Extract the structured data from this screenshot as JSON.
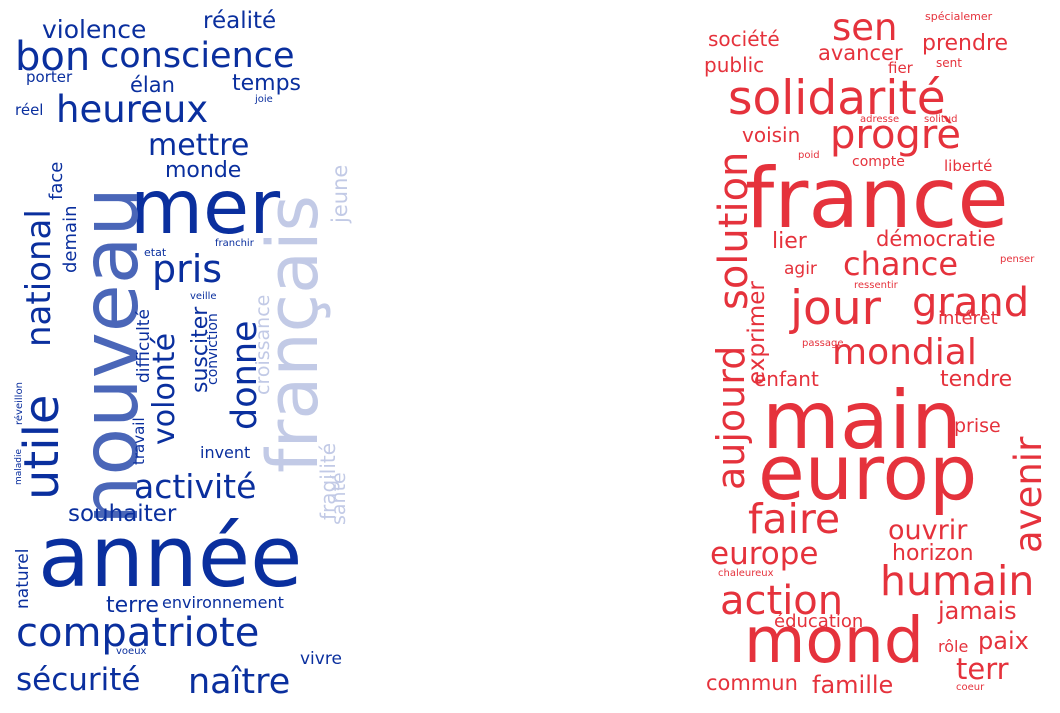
{
  "colors": {
    "blue_dark": "#0a2f9e",
    "blue_mid": "#4a66b8",
    "blue_light": "#c2cae6",
    "red": "#e5323c",
    "red_light": "#f08a90"
  },
  "left_cloud": {
    "words": [
      {
        "text": "violence",
        "color": "blue_dark"
      },
      {
        "text": "réalité",
        "color": "blue_dark"
      },
      {
        "text": "bon",
        "color": "blue_dark"
      },
      {
        "text": "conscience",
        "color": "blue_dark"
      },
      {
        "text": "porter",
        "color": "blue_dark"
      },
      {
        "text": "élan",
        "color": "blue_dark"
      },
      {
        "text": "temps",
        "color": "blue_dark"
      },
      {
        "text": "joie",
        "color": "blue_dark"
      },
      {
        "text": "réel",
        "color": "blue_dark"
      },
      {
        "text": "heureux",
        "color": "blue_dark"
      },
      {
        "text": "mettre",
        "color": "blue_dark"
      },
      {
        "text": "mer",
        "color": "blue_dark"
      },
      {
        "text": "monde",
        "color": "blue_dark"
      },
      {
        "text": "nouveau",
        "color": "blue_mid"
      },
      {
        "text": "français",
        "color": "blue_light"
      },
      {
        "text": "jeune",
        "color": "blue_light"
      },
      {
        "text": "national",
        "color": "blue_dark"
      },
      {
        "text": "face",
        "color": "blue_dark"
      },
      {
        "text": "demain",
        "color": "blue_dark"
      },
      {
        "text": "franchir",
        "color": "blue_dark"
      },
      {
        "text": "etat",
        "color": "blue_dark"
      },
      {
        "text": "pris",
        "color": "blue_dark"
      },
      {
        "text": "croissance",
        "color": "blue_light"
      },
      {
        "text": "fragilité",
        "color": "blue_light"
      },
      {
        "text": "difficulté",
        "color": "blue_dark"
      },
      {
        "text": "veille",
        "color": "blue_dark"
      },
      {
        "text": "volonté",
        "color": "blue_dark"
      },
      {
        "text": "susciter",
        "color": "blue_dark"
      },
      {
        "text": "donne",
        "color": "blue_dark"
      },
      {
        "text": "conviction",
        "color": "blue_dark"
      },
      {
        "text": "utile",
        "color": "blue_dark"
      },
      {
        "text": "travail",
        "color": "blue_dark"
      },
      {
        "text": "réveillon",
        "color": "blue_dark"
      },
      {
        "text": "invent",
        "color": "blue_dark"
      },
      {
        "text": "santé",
        "color": "blue_light"
      },
      {
        "text": "activité",
        "color": "blue_dark"
      },
      {
        "text": "maladie",
        "color": "blue_dark"
      },
      {
        "text": "souhaiter",
        "color": "blue_dark"
      },
      {
        "text": "naturel",
        "color": "blue_dark"
      },
      {
        "text": "année",
        "color": "blue_dark"
      },
      {
        "text": "terre",
        "color": "blue_dark"
      },
      {
        "text": "environnement",
        "color": "blue_dark"
      },
      {
        "text": "compatriote",
        "color": "blue_dark"
      },
      {
        "text": "voeux",
        "color": "blue_dark"
      },
      {
        "text": "vivre",
        "color": "blue_dark"
      },
      {
        "text": "sécurité",
        "color": "blue_dark"
      },
      {
        "text": "naître",
        "color": "blue_dark"
      }
    ]
  },
  "right_cloud": {
    "words": [
      {
        "text": "spécialemer",
        "color": "red"
      },
      {
        "text": "société",
        "color": "red"
      },
      {
        "text": "sen",
        "color": "red"
      },
      {
        "text": "prendre",
        "color": "red"
      },
      {
        "text": "avancer",
        "color": "red"
      },
      {
        "text": "public",
        "color": "red"
      },
      {
        "text": "fier",
        "color": "red"
      },
      {
        "text": "sent",
        "color": "red"
      },
      {
        "text": "solidarité",
        "color": "red"
      },
      {
        "text": "adresse",
        "color": "red"
      },
      {
        "text": "solitud",
        "color": "red"
      },
      {
        "text": "progrè",
        "color": "red"
      },
      {
        "text": "voisin",
        "color": "red"
      },
      {
        "text": "poid",
        "color": "red"
      },
      {
        "text": "compte",
        "color": "red"
      },
      {
        "text": "liberté",
        "color": "red"
      },
      {
        "text": "france",
        "color": "red"
      },
      {
        "text": "solution",
        "color": "red"
      },
      {
        "text": "lier",
        "color": "red"
      },
      {
        "text": "démocratie",
        "color": "red"
      },
      {
        "text": "agir",
        "color": "red"
      },
      {
        "text": "chance",
        "color": "red"
      },
      {
        "text": "penser",
        "color": "red"
      },
      {
        "text": "ressentir",
        "color": "red"
      },
      {
        "text": "aujourd",
        "color": "red"
      },
      {
        "text": "exprimer",
        "color": "red"
      },
      {
        "text": "jour",
        "color": "red"
      },
      {
        "text": "grand",
        "color": "red"
      },
      {
        "text": "intérêt",
        "color": "red"
      },
      {
        "text": "passage",
        "color": "red"
      },
      {
        "text": "mondial",
        "color": "red"
      },
      {
        "text": "enfant",
        "color": "red"
      },
      {
        "text": "tendre",
        "color": "red"
      },
      {
        "text": "avenir",
        "color": "red"
      },
      {
        "text": "main",
        "color": "red"
      },
      {
        "text": "prise",
        "color": "red"
      },
      {
        "text": "europ",
        "color": "red"
      },
      {
        "text": "faire",
        "color": "red"
      },
      {
        "text": "ouvrir",
        "color": "red"
      },
      {
        "text": "europe",
        "color": "red"
      },
      {
        "text": "horizon",
        "color": "red"
      },
      {
        "text": "humain",
        "color": "red"
      },
      {
        "text": "chaleureux",
        "color": "red"
      },
      {
        "text": "action",
        "color": "red"
      },
      {
        "text": "éducation",
        "color": "red"
      },
      {
        "text": "jamais",
        "color": "red"
      },
      {
        "text": "mond",
        "color": "red"
      },
      {
        "text": "rôle",
        "color": "red"
      },
      {
        "text": "paix",
        "color": "red"
      },
      {
        "text": "terr",
        "color": "red"
      },
      {
        "text": "commun",
        "color": "red"
      },
      {
        "text": "famille",
        "color": "red"
      },
      {
        "text": "coeur",
        "color": "red"
      }
    ]
  }
}
